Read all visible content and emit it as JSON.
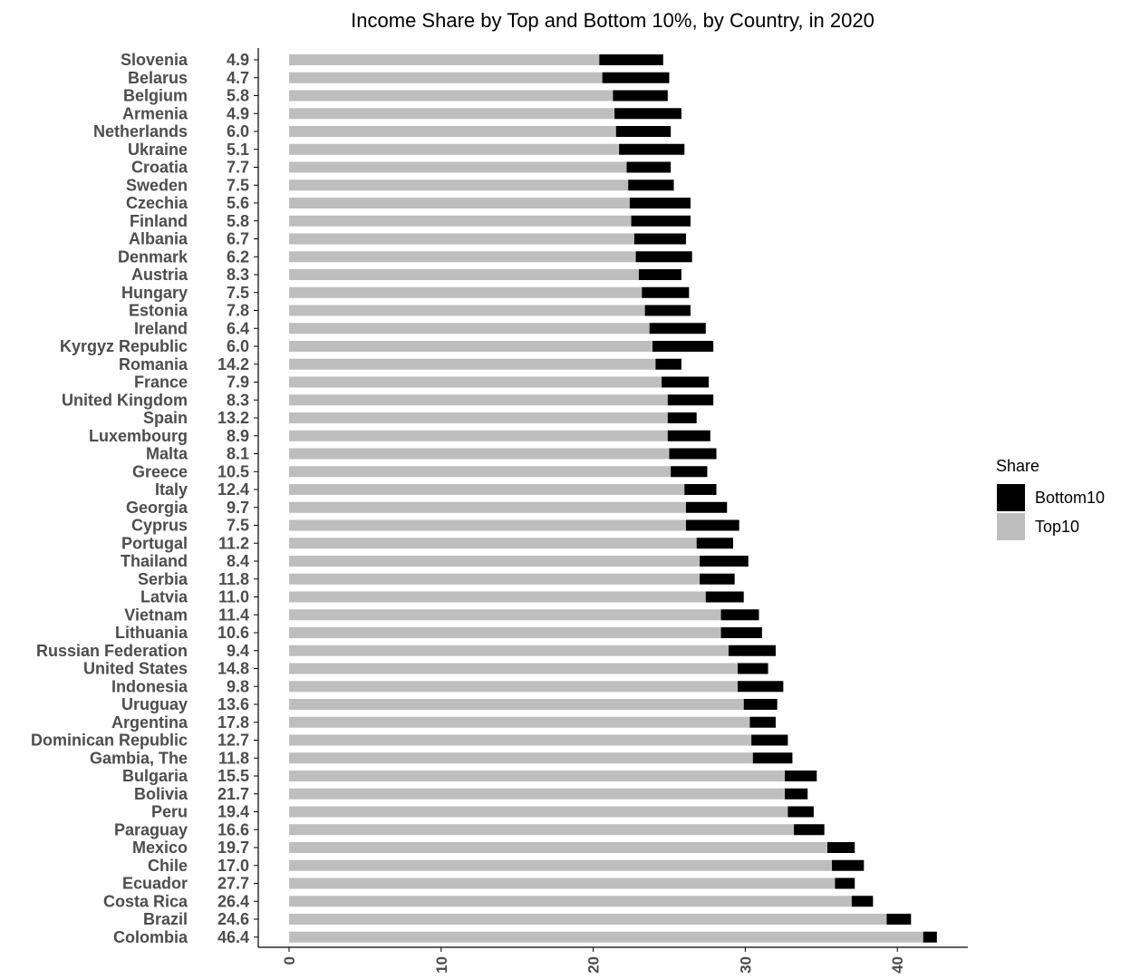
{
  "chart_data": {
    "type": "bar",
    "orientation": "horizontal",
    "stacked": true,
    "title": "Income Share by Top and Bottom 10%, by Country, in 2020",
    "xlim": [
      -2,
      45
    ],
    "x_ticks": [
      "0",
      "10",
      "20",
      "30",
      "40"
    ],
    "grid": false,
    "legend_position": "right",
    "legend_title": "Share",
    "colors": {
      "Top10": "#bebebe",
      "Bottom10": "#000000",
      "axis": "#000000",
      "text": "#4d4d4d"
    },
    "categories": [
      "Slovenia",
      "Belarus",
      "Belgium",
      "Armenia",
      "Netherlands",
      "Ukraine",
      "Croatia",
      "Sweden",
      "Czechia",
      "Finland",
      "Albania",
      "Denmark",
      "Austria",
      "Hungary",
      "Estonia",
      "Ireland",
      "Kyrgyz Republic",
      "Romania",
      "France",
      "United Kingdom",
      "Spain",
      "Luxembourg",
      "Malta",
      "Greece",
      "Italy",
      "Georgia",
      "Cyprus",
      "Portugal",
      "Thailand",
      "Serbia",
      "Latvia",
      "Vietnam",
      "Lithuania",
      "Russian Federation",
      "United States",
      "Indonesia",
      "Uruguay",
      "Argentina",
      "Dominican Republic",
      "Gambia, The",
      "Bulgaria",
      "Bolivia",
      "Peru",
      "Paraguay",
      "Mexico",
      "Chile",
      "Ecuador",
      "Costa Rica",
      "Brazil",
      "Colombia"
    ],
    "ratio_labels": [
      "4.9",
      "4.7",
      "5.8",
      "4.9",
      "6.0",
      "5.1",
      "7.7",
      "7.5",
      "5.6",
      "5.8",
      "6.7",
      "6.2",
      "8.3",
      "7.5",
      "7.8",
      "6.4",
      "6.0",
      "14.2",
      "7.9",
      "8.3",
      "13.2",
      "8.9",
      "8.1",
      "10.5",
      "12.4",
      "9.7",
      "7.5",
      "11.2",
      "8.4",
      "11.8",
      "11.0",
      "11.4",
      "10.6",
      "9.4",
      "14.8",
      "9.8",
      "13.6",
      "17.8",
      "12.7",
      "11.8",
      "15.5",
      "21.7",
      "19.4",
      "16.6",
      "19.7",
      "17.0",
      "27.7",
      "26.4",
      "24.6",
      "46.4"
    ],
    "series": [
      {
        "name": "Top10",
        "values": [
          20.4,
          20.6,
          21.3,
          21.4,
          21.5,
          21.7,
          22.2,
          22.3,
          22.4,
          22.5,
          22.7,
          22.8,
          23.0,
          23.2,
          23.4,
          23.7,
          23.9,
          24.1,
          24.5,
          24.9,
          24.9,
          24.9,
          25.0,
          25.1,
          26.0,
          26.1,
          26.1,
          26.8,
          27.0,
          27.0,
          27.4,
          28.4,
          28.4,
          28.9,
          29.5,
          29.5,
          29.9,
          30.3,
          30.4,
          30.5,
          32.6,
          32.6,
          32.8,
          33.2,
          35.4,
          35.7,
          35.9,
          37.0,
          39.3,
          41.7
        ]
      },
      {
        "name": "Bottom10",
        "values": [
          4.2,
          4.4,
          3.6,
          4.4,
          3.6,
          4.3,
          2.9,
          3.0,
          4.0,
          3.9,
          3.4,
          3.7,
          2.8,
          3.1,
          3.0,
          3.7,
          4.0,
          1.7,
          3.1,
          3.0,
          1.9,
          2.8,
          3.1,
          2.4,
          2.1,
          2.7,
          3.5,
          2.4,
          3.2,
          2.3,
          2.5,
          2.5,
          2.7,
          3.1,
          2.0,
          3.0,
          2.2,
          1.7,
          2.4,
          2.6,
          2.1,
          1.5,
          1.7,
          2.0,
          1.8,
          2.1,
          1.3,
          1.4,
          1.6,
          0.9
        ]
      }
    ]
  }
}
